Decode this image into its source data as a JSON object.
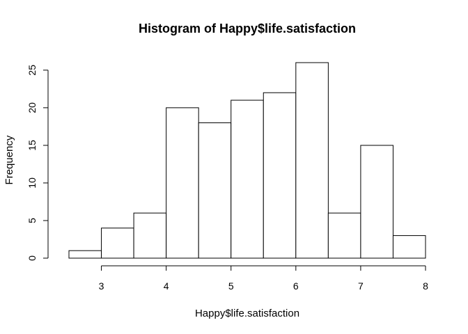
{
  "chart_data": {
    "type": "bar",
    "title": "Histogram of Happy$life.satisfaction",
    "xlabel": "Happy$life.satisfaction",
    "ylabel": "Frequency",
    "bins": [
      {
        "start": 2.5,
        "end": 3.0,
        "value": 1
      },
      {
        "start": 3.0,
        "end": 3.5,
        "value": 4
      },
      {
        "start": 3.5,
        "end": 4.0,
        "value": 6
      },
      {
        "start": 4.0,
        "end": 4.5,
        "value": 20
      },
      {
        "start": 4.5,
        "end": 5.0,
        "value": 18
      },
      {
        "start": 5.0,
        "end": 5.5,
        "value": 21
      },
      {
        "start": 5.5,
        "end": 6.0,
        "value": 22
      },
      {
        "start": 6.0,
        "end": 6.5,
        "value": 26
      },
      {
        "start": 6.5,
        "end": 7.0,
        "value": 6
      },
      {
        "start": 7.0,
        "end": 7.5,
        "value": 15
      },
      {
        "start": 7.5,
        "end": 8.0,
        "value": 3
      }
    ],
    "xlim": [
      2.5,
      8
    ],
    "ylim": [
      0,
      26
    ],
    "x_ticks": [
      "3",
      "4",
      "5",
      "6",
      "7",
      "8"
    ],
    "y_ticks": [
      "0",
      "5",
      "10",
      "15",
      "20",
      "25"
    ],
    "grid": false,
    "legend": "none",
    "bar_fill": "#ffffff",
    "bar_stroke": "#000000"
  }
}
